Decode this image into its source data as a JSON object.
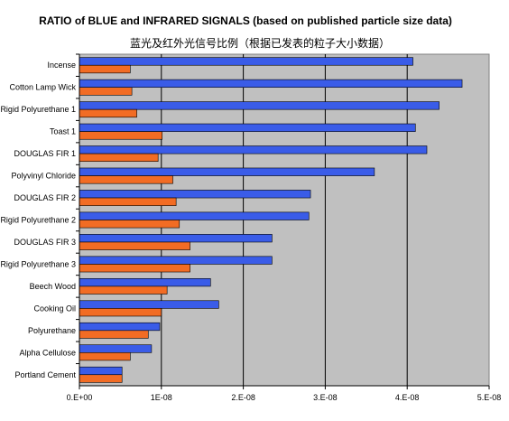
{
  "chart_data": {
    "type": "bar",
    "orientation": "horizontal",
    "title": "RATIO of BLUE and INFRARED SIGNALS (based on published particle size data)",
    "subtitle": "蓝光及红外光信号比例（根据已发表的粒子大小数据）",
    "categories": [
      "Incense",
      "Cotton Lamp Wick",
      "Rigid Polyurethane 1",
      "Toast 1",
      "DOUGLAS FIR 1",
      "Polyvinyl Chloride",
      "DOUGLAS FIR 2",
      "Rigid Polyurethane 2",
      "DOUGLAS FIR 3",
      "Rigid Polyurethane 3",
      "Beech Wood",
      "Cooking Oil",
      "Polyurethane",
      "Alpha Cellulose",
      "Portland Cement"
    ],
    "series": [
      {
        "values": [
          4.07e-08,
          4.67e-08,
          4.39e-08,
          4.1e-08,
          4.24e-08,
          3.6e-08,
          2.82e-08,
          2.8e-08,
          2.35e-08,
          2.35e-08,
          1.6e-08,
          1.7e-08,
          9.8e-09,
          8.8e-09,
          5.2e-09
        ],
        "color": "#3a5ce8"
      },
      {
        "values": [
          6.2e-09,
          6.4e-09,
          7e-09,
          1.01e-08,
          9.6e-09,
          1.14e-08,
          1.18e-08,
          1.22e-08,
          1.35e-08,
          1.35e-08,
          1.07e-08,
          1e-08,
          8.4e-09,
          6.2e-09,
          5.2e-09
        ],
        "color": "#f26c24"
      }
    ],
    "xlim": [
      0,
      5e-08
    ],
    "xticks": [
      "0.E+00",
      "1E-08",
      "2.E-08",
      "3.E-08",
      "4.E-08",
      "5.E-08"
    ],
    "grid": true,
    "plot_background": "#c0c0c0"
  }
}
